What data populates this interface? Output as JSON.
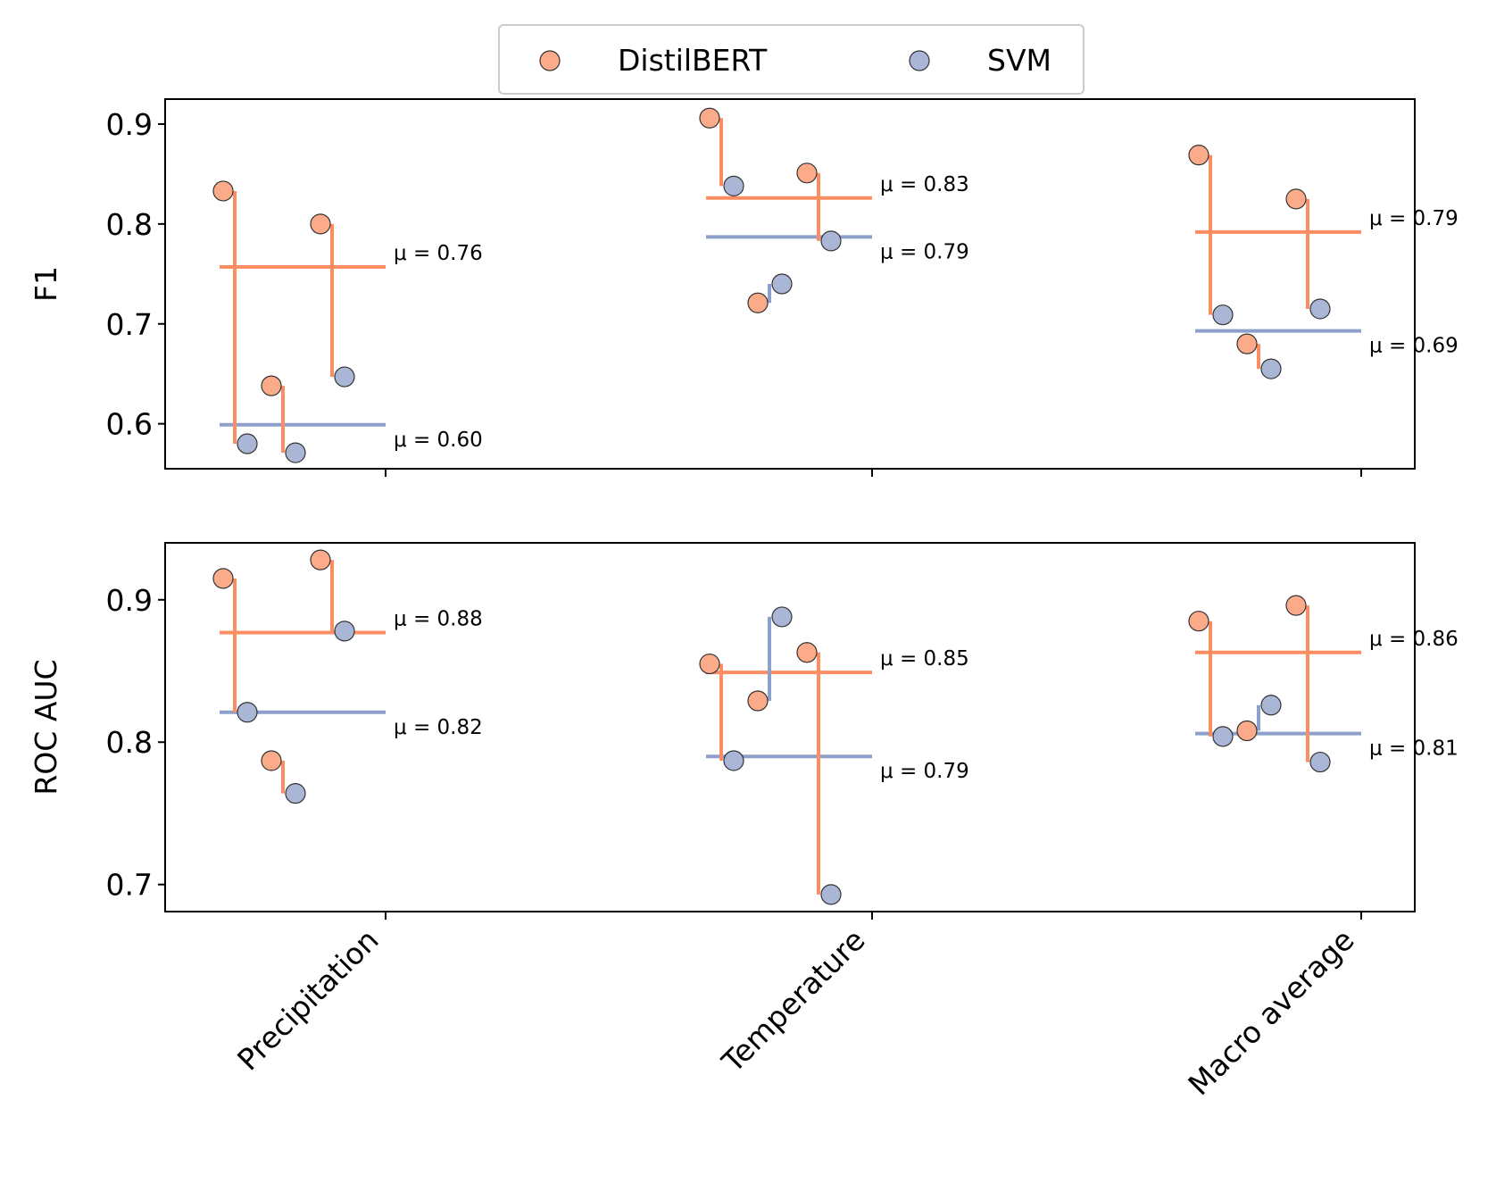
{
  "chart_data": {
    "type": "scatter",
    "categories": [
      "Precipitation",
      "Temperature",
      "Macro average"
    ],
    "legend": {
      "placement": "top-center",
      "entries": [
        {
          "name": "DistilBERT",
          "color": "#fc8d62",
          "fill": "#fcab8a"
        },
        {
          "name": "SVM",
          "color": "#8da0cb",
          "fill": "#aab6d6"
        }
      ]
    },
    "mean_prefix": "μ = ",
    "panels": [
      {
        "ylabel": "F1",
        "ylim": [
          0.555,
          0.925
        ],
        "yticks": [
          0.6,
          0.7,
          0.8,
          0.9
        ],
        "ytick_labels": [
          "0.6",
          "0.7",
          "0.8",
          "0.9"
        ],
        "groups": [
          {
            "category": "Precipitation",
            "pairs": [
              {
                "distilbert": 0.833,
                "svm": 0.58
              },
              {
                "distilbert": 0.638,
                "svm": 0.571
              },
              {
                "distilbert": 0.8,
                "svm": 0.647
              }
            ],
            "distilbert_mean": 0.757,
            "svm_mean": 0.599,
            "distilbert_label": "0.76",
            "svm_label": "0.60"
          },
          {
            "category": "Temperature",
            "pairs": [
              {
                "distilbert": 0.906,
                "svm": 0.838
              },
              {
                "distilbert": 0.721,
                "svm": 0.74
              },
              {
                "distilbert": 0.851,
                "svm": 0.783
              }
            ],
            "distilbert_mean": 0.826,
            "svm_mean": 0.787,
            "distilbert_label": "0.83",
            "svm_label": "0.79"
          },
          {
            "category": "Macro average",
            "pairs": [
              {
                "distilbert": 0.869,
                "svm": 0.709
              },
              {
                "distilbert": 0.68,
                "svm": 0.655
              },
              {
                "distilbert": 0.825,
                "svm": 0.715
              }
            ],
            "distilbert_mean": 0.792,
            "svm_mean": 0.693,
            "distilbert_label": "0.79",
            "svm_label": "0.69"
          }
        ]
      },
      {
        "ylabel": "ROC AUC",
        "ylim": [
          0.681,
          0.94
        ],
        "yticks": [
          0.7,
          0.8,
          0.9
        ],
        "ytick_labels": [
          "0.7",
          "0.8",
          "0.9"
        ],
        "groups": [
          {
            "category": "Precipitation",
            "pairs": [
              {
                "distilbert": 0.915,
                "svm": 0.821
              },
              {
                "distilbert": 0.787,
                "svm": 0.764
              },
              {
                "distilbert": 0.928,
                "svm": 0.878
              }
            ],
            "distilbert_mean": 0.877,
            "svm_mean": 0.821,
            "distilbert_label": "0.88",
            "svm_label": "0.82"
          },
          {
            "category": "Temperature",
            "pairs": [
              {
                "distilbert": 0.855,
                "svm": 0.787
              },
              {
                "distilbert": 0.829,
                "svm": 0.888
              },
              {
                "distilbert": 0.863,
                "svm": 0.693
              }
            ],
            "distilbert_mean": 0.849,
            "svm_mean": 0.79,
            "distilbert_label": "0.85",
            "svm_label": "0.79"
          },
          {
            "category": "Macro average",
            "pairs": [
              {
                "distilbert": 0.885,
                "svm": 0.804
              },
              {
                "distilbert": 0.808,
                "svm": 0.826
              },
              {
                "distilbert": 0.896,
                "svm": 0.786
              }
            ],
            "distilbert_mean": 0.863,
            "svm_mean": 0.806,
            "distilbert_label": "0.86",
            "svm_label": "0.81"
          }
        ]
      }
    ]
  }
}
